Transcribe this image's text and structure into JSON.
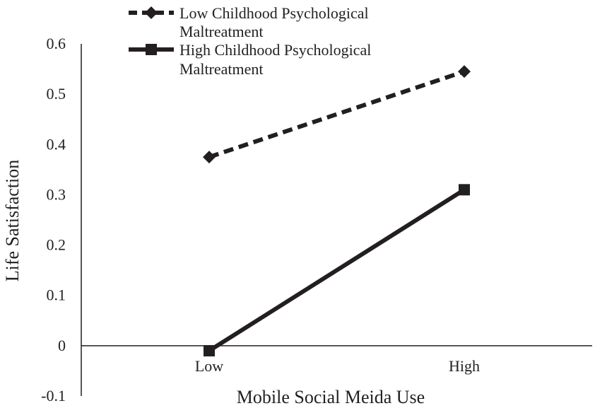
{
  "chart_data": {
    "type": "line",
    "title": "",
    "xlabel": "Mobile Social Meida Use",
    "ylabel": "Life Satisfaction",
    "categories": [
      "Low",
      "High"
    ],
    "ylim": [
      -0.1,
      0.6
    ],
    "yticks": [
      "0.6",
      "0.5",
      "0.4",
      "0.3",
      "0.2",
      "0.1",
      "0",
      "-0.1"
    ],
    "ytick_values": [
      0.6,
      0.5,
      0.4,
      0.3,
      0.2,
      0.1,
      0,
      -0.1
    ],
    "grid": false,
    "legend_position": "top",
    "series": [
      {
        "name_line1": "Low Childhood Psychological",
        "name_line2": "Maltreatment",
        "values": [
          0.375,
          0.545
        ],
        "line_style": "dashed",
        "marker": "diamond",
        "color": "#231f20"
      },
      {
        "name_line1": "High Childhood Psychological",
        "name_line2": "Maltreatment",
        "values": [
          -0.01,
          0.31
        ],
        "line_style": "solid",
        "marker": "square",
        "color": "#231f20"
      }
    ]
  }
}
